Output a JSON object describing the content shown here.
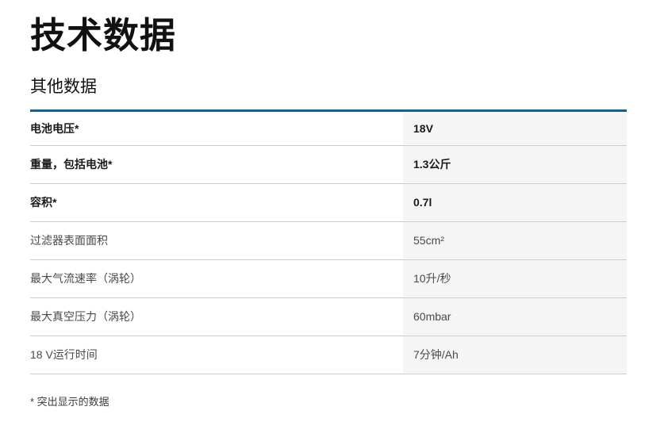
{
  "page": {
    "title": "技术数据",
    "section_title": "其他数据",
    "footnote": "* 突出显示的数据"
  },
  "colors": {
    "accent_blue": "#15608f",
    "row_divider": "#cccccc",
    "value_column_bg": "#f5f5f5",
    "highlight_text": "#1a1a1a",
    "regular_text": "#4a4a4a"
  },
  "table": {
    "rows": [
      {
        "label": "电池电压*",
        "value": "18V",
        "highlighted": true
      },
      {
        "label": "重量，包括电池*",
        "value": "1.3公斤",
        "highlighted": true
      },
      {
        "label": "容积*",
        "value": "0.7l",
        "highlighted": true
      },
      {
        "label": "过滤器表面面积",
        "value": "55cm²",
        "highlighted": false
      },
      {
        "label": "最大气流速率（涡轮）",
        "value": "10升/秒",
        "highlighted": false
      },
      {
        "label": "最大真空压力（涡轮）",
        "value": "60mbar",
        "highlighted": false
      },
      {
        "label": "18 V运行时间",
        "value": "7分钟/Ah",
        "highlighted": false
      }
    ]
  }
}
